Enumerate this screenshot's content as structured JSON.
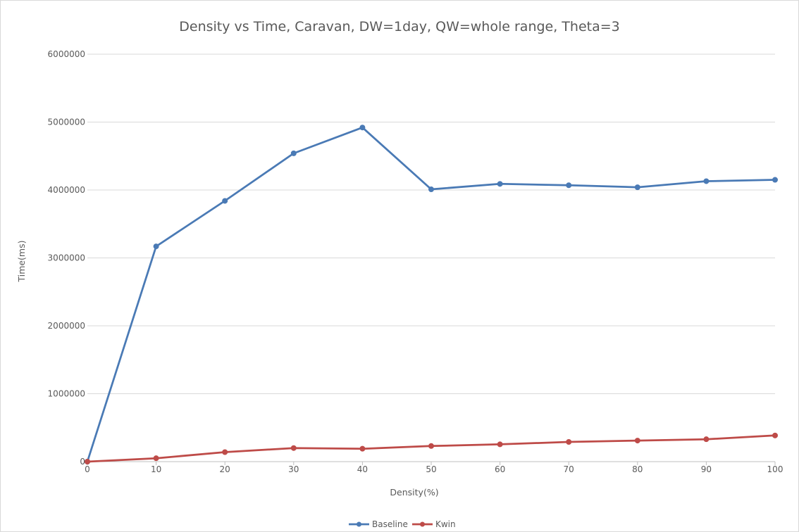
{
  "chart_data": {
    "type": "line",
    "title": "Density vs Time, Caravan, DW=1day, QW=whole range, Theta=3",
    "xlabel": "Density(%)",
    "ylabel": "Time(ms)",
    "x": [
      0,
      10,
      20,
      30,
      40,
      50,
      60,
      70,
      80,
      90,
      100
    ],
    "xlim": [
      0,
      100
    ],
    "xticks": [
      "0",
      "10",
      "20",
      "30",
      "40",
      "50",
      "60",
      "70",
      "80",
      "90",
      "100"
    ],
    "ylim": [
      0,
      6000000
    ],
    "yticks": [
      "0",
      "1000000",
      "2000000",
      "3000000",
      "4000000",
      "5000000",
      "6000000"
    ],
    "grid": "horizontal",
    "legend_position": "bottom",
    "series": [
      {
        "name": "Baseline",
        "color": "#4a7ab5",
        "values": [
          0,
          3170000,
          3840000,
          4540000,
          4920000,
          4010000,
          4090000,
          4070000,
          4040000,
          4130000,
          4150000
        ]
      },
      {
        "name": "Kwin",
        "color": "#be4b48",
        "values": [
          0,
          50000,
          140000,
          200000,
          190000,
          230000,
          255000,
          290000,
          310000,
          330000,
          385000
        ]
      }
    ]
  }
}
